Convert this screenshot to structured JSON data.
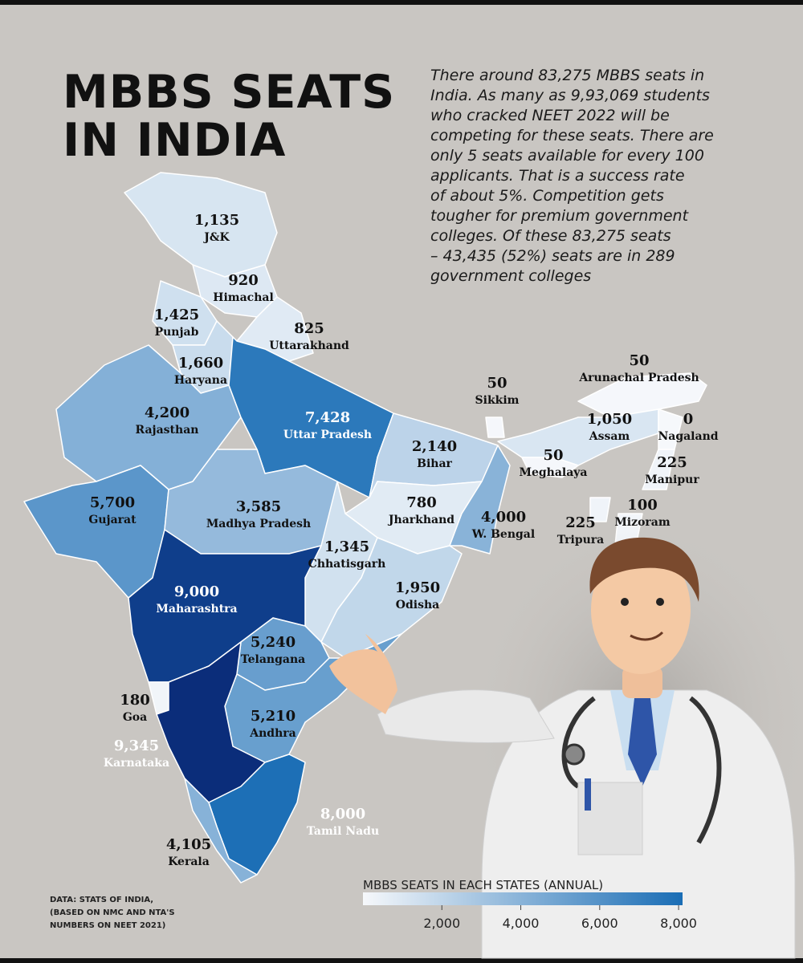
{
  "title_lines": [
    "MBBS SEATS",
    "IN INDIA"
  ],
  "description_lines": [
    "There around 83,275 MBBS seats in",
    "India. As many as 9,93,069 students",
    "who cracked NEET 2022 will be",
    "competing for these seats. There are",
    "only 5 seats available for every 100",
    "applicants. That is a success rate",
    "of about 5%. Competition gets",
    "tougher for premium government",
    "colleges. Of these 83,275 seats",
    "– 43,435 (52%) seats are in 289",
    "government colleges"
  ],
  "states": [
    {
      "name": "J&K",
      "value": 1135,
      "label": "1,135"
    },
    {
      "name": "Himachal",
      "value": 920,
      "label": "920"
    },
    {
      "name": "Punjab",
      "value": 1425,
      "label": "1,425"
    },
    {
      "name": "Uttarakhand",
      "value": 825,
      "label": "825"
    },
    {
      "name": "Haryana",
      "value": 1660,
      "label": "1,660"
    },
    {
      "name": "Rajasthan",
      "value": 4200,
      "label": "4,200"
    },
    {
      "name": "Uttar Pradesh",
      "value": 7428,
      "label": "7,428"
    },
    {
      "name": "Gujarat",
      "value": 5700,
      "label": "5,700"
    },
    {
      "name": "Madhya Pradesh",
      "value": 3585,
      "label": "3,585"
    },
    {
      "name": "Bihar",
      "value": 2140,
      "label": "2,140"
    },
    {
      "name": "Jharkhand",
      "value": 780,
      "label": "780"
    },
    {
      "name": "W. Bengal",
      "value": 4000,
      "label": "4,000"
    },
    {
      "name": "Chhatisgarh",
      "value": 1345,
      "label": "1,345"
    },
    {
      "name": "Odisha",
      "value": 1950,
      "label": "1,950"
    },
    {
      "name": "Maharashtra",
      "value": 9000,
      "label": "9,000"
    },
    {
      "name": "Telangana",
      "value": 5240,
      "label": "5,240"
    },
    {
      "name": "Andhra",
      "value": 5210,
      "label": "5,210"
    },
    {
      "name": "Goa",
      "value": 180,
      "label": "180"
    },
    {
      "name": "Karnataka",
      "value": 9345,
      "label": "9,345"
    },
    {
      "name": "Tamil Nadu",
      "value": 8000,
      "label": "8,000"
    },
    {
      "name": "Kerala",
      "value": 4105,
      "label": "4,105"
    },
    {
      "name": "Sikkim",
      "value": 50,
      "label": "50"
    },
    {
      "name": "Arunachal Pradesh",
      "value": 50,
      "label": "50"
    },
    {
      "name": "Assam",
      "value": 1050,
      "label": "1,050"
    },
    {
      "name": "Nagaland",
      "value": 0,
      "label": "0"
    },
    {
      "name": "Meghalaya",
      "value": 50,
      "label": "50"
    },
    {
      "name": "Manipur",
      "value": 225,
      "label": "225"
    },
    {
      "name": "Mizoram",
      "value": 100,
      "label": "100"
    },
    {
      "name": "Tripura",
      "value": 225,
      "label": "225"
    }
  ],
  "colorbar": {
    "title": "MBBS SEATS IN EACH STATES (ANNUAL)",
    "lim": [
      0,
      8100
    ],
    "ticks": [
      {
        "value": 2000,
        "label": "2,000"
      },
      {
        "value": 4000,
        "label": "4,000"
      },
      {
        "value": 6000,
        "label": "6,000"
      },
      {
        "value": 8000,
        "label": "8,000"
      }
    ],
    "colors": [
      "#f6f8fb",
      "#1a6db5"
    ]
  },
  "source_lines": [
    "DATA: STATS OF INDIA,",
    "(BASED ON NMC AND NTA'S",
    "NUMBERS ON NEET 2021)"
  ]
}
